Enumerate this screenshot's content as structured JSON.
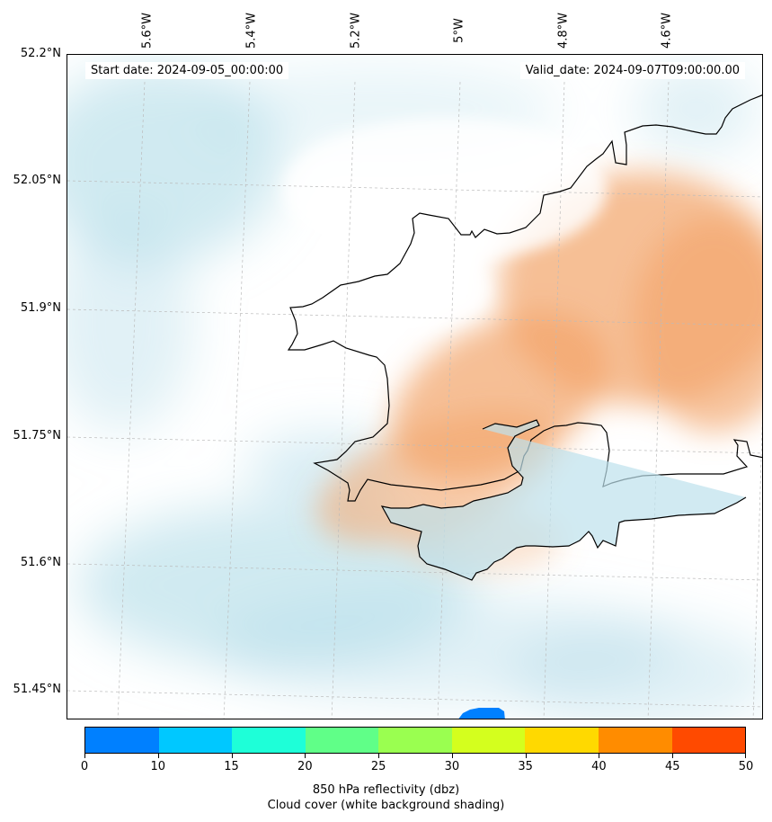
{
  "header": {
    "start_date": "Start date: 2024-09-05_00:00:00",
    "valid_date": "Valid_date: 2024-09-07T09:00:00.00"
  },
  "axes": {
    "lon_labels": [
      "5.6°W",
      "5.4°W",
      "5.2°W",
      "5°W",
      "4.8°W",
      "4.6°W"
    ],
    "lat_labels": [
      "52.2°N",
      "52.05°N",
      "51.9°N",
      "51.75°N",
      "51.6°N",
      "51.45°N"
    ]
  },
  "colorbar": {
    "colors": [
      "#0080ff",
      "#00c8ff",
      "#1effd8",
      "#60ff88",
      "#9aff50",
      "#d4ff1e",
      "#ffd900",
      "#ff8c00",
      "#ff4a00"
    ],
    "ticks": [
      "0",
      "10",
      "15",
      "20",
      "25",
      "30",
      "35",
      "40",
      "45",
      "50"
    ],
    "label_line1": "850 hPa reflectivity (dbz)",
    "label_line2": "Cloud cover (white background shading)"
  },
  "map_colors": {
    "warm_shading": "#f2a46a",
    "cool_shading": "#a9d8e6",
    "reflectivity_echo": "#0080ff",
    "coastline": "#000000",
    "gridline": "#bbbbbb"
  }
}
